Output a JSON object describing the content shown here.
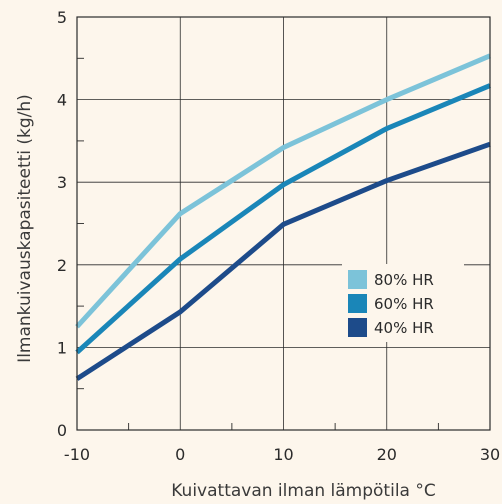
{
  "chart_data": {
    "type": "line",
    "xlabel": "Kuivattavan ilman lämpötila °C",
    "ylabel": "Ilmankuivauskapasiteetti (kg/h)",
    "x": [
      -10,
      0,
      10,
      20,
      30
    ],
    "xlim": [
      -10,
      30
    ],
    "ylim": [
      0,
      5
    ],
    "xticks": [
      "-10",
      "0",
      "10",
      "20",
      "30"
    ],
    "yticks": [
      "0",
      "1",
      "2",
      "3",
      "4",
      "5"
    ],
    "grid": true,
    "legend_position": "lower-right",
    "series": [
      {
        "name": "80% HR",
        "color": "#7cc3d9",
        "values": [
          1.25,
          2.62,
          3.42,
          4.0,
          4.53
        ]
      },
      {
        "name": "60% HR",
        "color": "#1a86b8",
        "values": [
          0.94,
          2.07,
          2.97,
          3.65,
          4.17
        ]
      },
      {
        "name": "40% HR",
        "color": "#1d4b8a",
        "values": [
          0.62,
          1.43,
          2.49,
          3.02,
          3.46
        ]
      }
    ]
  }
}
